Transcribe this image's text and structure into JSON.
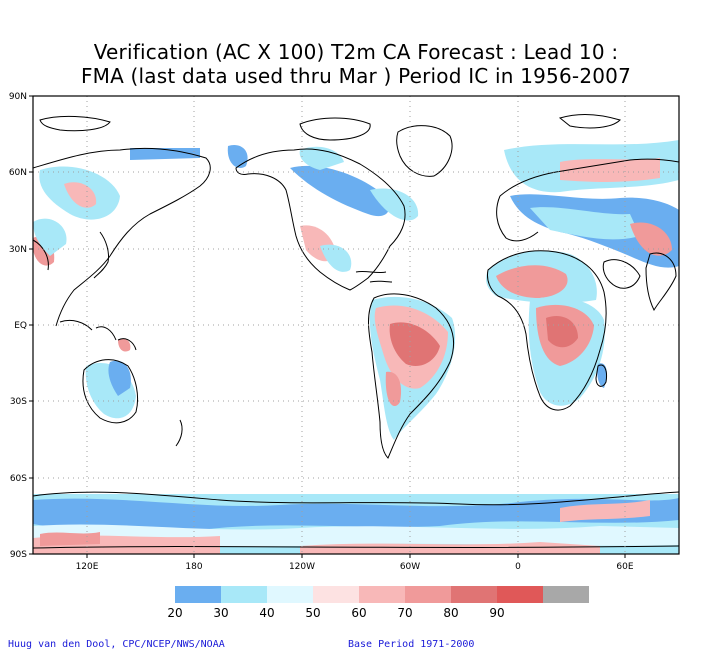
{
  "title": {
    "line1": "Verification (AC X 100) T2m CA Forecast : Lead 10 :",
    "line2": "FMA (last data used thru Mar ) Period IC in 1956-2007"
  },
  "axes": {
    "lat_labels": [
      "90N",
      "60N",
      "30N",
      "EQ",
      "30S",
      "60S",
      "90S"
    ],
    "lon_labels": [
      "120E",
      "180",
      "120W",
      "60W",
      "0",
      "60E"
    ]
  },
  "legend": {
    "labels": [
      "20",
      "30",
      "40",
      "50",
      "60",
      "70",
      "80",
      "90"
    ],
    "colors": [
      "#6aaef0",
      "#a8e8f8",
      "#e0f8ff",
      "#fde2e2",
      "#f8b8b8",
      "#f09a9a",
      "#e07474",
      "#e05858",
      "#a8a8a8"
    ]
  },
  "credits": {
    "left": "Huug van den Dool, CPC/NCEP/NWS/NOAA",
    "right": "Base Period 1971-2000"
  }
}
